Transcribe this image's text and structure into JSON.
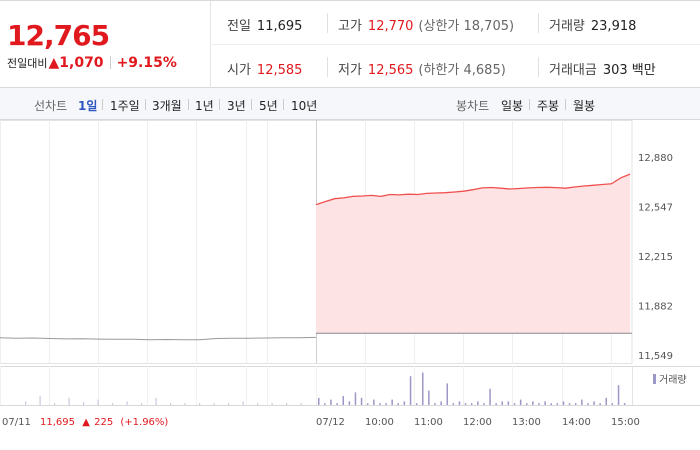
{
  "header": {
    "current_price": "12,765",
    "change_label": "전일대비",
    "change_arrow": "▲",
    "change_value": "1,070",
    "change_percent": "+9.15%"
  },
  "stats": {
    "prev_close": {
      "label": "전일",
      "value": "11,695"
    },
    "high": {
      "label": "고가",
      "value": "12,770",
      "sub": "(상한가 18,705)"
    },
    "volume": {
      "label": "거래량",
      "value": "23,918"
    },
    "open": {
      "label": "시가",
      "value": "12,585"
    },
    "low": {
      "label": "저가",
      "value": "12,565",
      "sub": "(하한가 4,685)"
    },
    "amount": {
      "label": "거래대금",
      "value": "303 백만"
    }
  },
  "tabs": {
    "line_label": "선차트",
    "line_tabs": [
      "1일",
      "1주일",
      "3개월",
      "1년",
      "3년",
      "5년",
      "10년"
    ],
    "active": "1일",
    "candle_label": "봉차트",
    "candle_tabs": [
      "일봉",
      "주봉",
      "월봉"
    ]
  },
  "colors": {
    "up": "#e0191e",
    "line_up": "#f05050",
    "fill_up": "#fde3e3",
    "prev_line": "#999999",
    "volume": "#9b97c6"
  },
  "chart_data": {
    "type": "area",
    "y_ticks": [
      "12,880",
      "12,547",
      "12,215",
      "11,882",
      "11,549"
    ],
    "ylim": [
      11549,
      12880
    ],
    "x_ticks": [
      "07/12",
      "10:00",
      "11:00",
      "12:00",
      "13:00",
      "14:00",
      "15:00"
    ],
    "prev_day": {
      "label_date": "07/11",
      "label_close": "11,695",
      "label_arrow": "▲",
      "label_change": "225",
      "label_percent": "(+1.96%)",
      "values": [
        11665,
        11662,
        11663,
        11660,
        11657,
        11658,
        11656,
        11655,
        11655,
        11652,
        11653,
        11652,
        11652,
        11660,
        11662,
        11662,
        11663,
        11665,
        11665,
        11667
      ]
    },
    "today": {
      "reference_line": 11695,
      "values": [
        12560,
        12580,
        12600,
        12605,
        12615,
        12618,
        12622,
        12615,
        12628,
        12625,
        12630,
        12628,
        12635,
        12638,
        12640,
        12645,
        12650,
        12660,
        12672,
        12675,
        12670,
        12665,
        12668,
        12672,
        12675,
        12676,
        12674,
        12670,
        12678,
        12685,
        12690,
        12695,
        12700,
        12740,
        12765
      ]
    },
    "volume_label": "거래량",
    "volume_prev": [
      0.1,
      0.25,
      0.05,
      0.2,
      0.08,
      0.15,
      0.05,
      0.1,
      0.05,
      0.2,
      0.05,
      0.05,
      0.05,
      0.05,
      0.05,
      0.1,
      0.05,
      0.05,
      0.05,
      0.05
    ],
    "volume_today": [
      0.2,
      0.05,
      0.15,
      0.05,
      0.25,
      0.1,
      0.35,
      0.2,
      0.05,
      0.15,
      0.05,
      0.05,
      0.15,
      0.05,
      0.1,
      0.8,
      0.05,
      0.9,
      0.4,
      0.05,
      0.1,
      0.6,
      0.05,
      0.1,
      0.05,
      0.05,
      0.1,
      0.05,
      0.45,
      0.05,
      0.1,
      0.1,
      0.05,
      0.15,
      0.05,
      0.1,
      0.05,
      0.1,
      0.05,
      0.05,
      0.1,
      0.05,
      0.05,
      0.15,
      0.05,
      0.1,
      0.05,
      0.2,
      0.05,
      0.55,
      0.05
    ]
  }
}
